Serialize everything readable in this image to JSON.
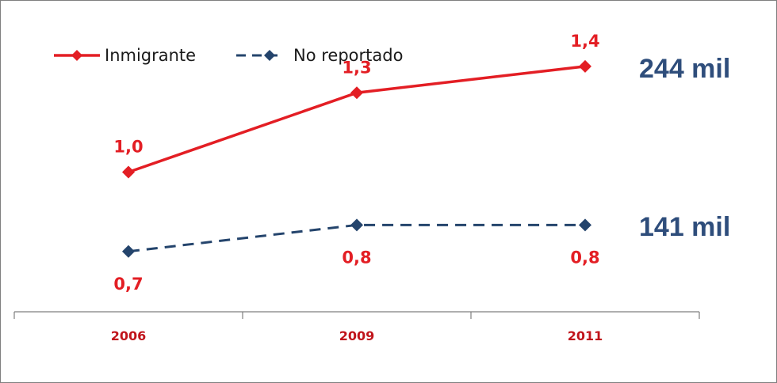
{
  "chart_data": {
    "type": "line",
    "categories": [
      "2006",
      "2009",
      "2011"
    ],
    "series": [
      {
        "name": "Inmigrante",
        "values": [
          1.0,
          1.3,
          1.4
        ],
        "labels": [
          "1,0",
          "1,3",
          "1,4"
        ],
        "color": "#e31e24",
        "line_style": "solid",
        "marker": "diamond",
        "note": "244 mil",
        "note_color": "#2e4d7b"
      },
      {
        "name": "No reportado",
        "values": [
          0.7,
          0.8,
          0.8
        ],
        "labels": [
          "0,7",
          "0,8",
          "0,8"
        ],
        "color": "#24446c",
        "line_style": "dashed",
        "marker": "diamond",
        "label_color": "#e31e24",
        "note": "141 mil",
        "note_color": "#2e4d7b"
      }
    ],
    "title": "",
    "xlabel": "",
    "ylabel": "",
    "ylim": [
      0.4,
      1.6
    ],
    "y_axis_visible": false,
    "grid": false,
    "legend": "top-left",
    "tick_label_color": "#c0141b"
  }
}
